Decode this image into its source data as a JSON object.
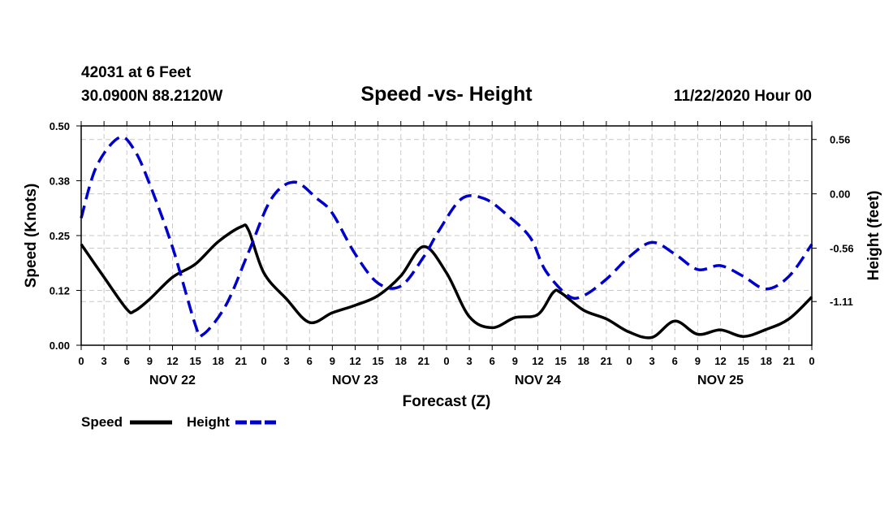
{
  "header": {
    "station": "42031 at 6 Feet",
    "coords": "30.0900N 88.2120W",
    "title": "Speed -vs- Height",
    "timestamp": "11/22/2020 Hour 00"
  },
  "legend": {
    "speed_label": "Speed",
    "height_label": "Height"
  },
  "colors": {
    "speed": "#000000",
    "height": "#0000cc",
    "grid": "#c8c8c8"
  },
  "chart_data": {
    "type": "line",
    "title": "Speed -vs- Height",
    "xlabel": "Forecast (Z)",
    "ylabel_left": "Speed (Knots)",
    "ylabel_right": "Height (feet)",
    "xlim": [
      0,
      96
    ],
    "x_tick_step": 3,
    "x_tick_labels": [
      "0",
      "3",
      "6",
      "9",
      "12",
      "15",
      "18",
      "21",
      "0",
      "3",
      "6",
      "9",
      "12",
      "15",
      "18",
      "21",
      "0",
      "3",
      "6",
      "9",
      "12",
      "15",
      "18",
      "21",
      "0",
      "3",
      "6",
      "9",
      "12",
      "15",
      "18",
      "21",
      "0"
    ],
    "day_labels": [
      {
        "label": "NOV 22",
        "x": 12
      },
      {
        "label": "NOV 23",
        "x": 36
      },
      {
        "label": "NOV 24",
        "x": 60
      },
      {
        "label": "NOV 25",
        "x": 84
      }
    ],
    "ylim_left": [
      0,
      0.5
    ],
    "y_ticks_left": [
      0.0,
      0.125,
      0.25,
      0.375,
      0.5
    ],
    "y_tick_labels_left": [
      "0.00",
      "0.12",
      "0.25",
      "0.38",
      "0.50"
    ],
    "ylim_right": [
      -1.56,
      0.7
    ],
    "y_ticks_right": [
      0.56,
      0.0,
      -0.56,
      -1.11
    ],
    "y_tick_labels_right": [
      "0.56",
      "0.00",
      "-0.56",
      "-1.11"
    ],
    "series": [
      {
        "name": "Speed",
        "axis": "left",
        "style": "solid",
        "x": [
          0,
          3,
          6,
          7,
          9,
          12,
          15,
          18,
          21,
          22,
          24,
          27,
          30,
          33,
          36,
          39,
          42,
          45,
          48,
          51,
          54,
          57,
          60,
          62,
          63,
          66,
          69,
          72,
          75,
          78,
          81,
          84,
          87,
          90,
          93,
          96
        ],
        "values": [
          0.23,
          0.155,
          0.082,
          0.078,
          0.105,
          0.155,
          0.185,
          0.236,
          0.27,
          0.262,
          0.165,
          0.105,
          0.052,
          0.074,
          0.091,
          0.113,
          0.158,
          0.225,
          0.165,
          0.065,
          0.04,
          0.063,
          0.07,
          0.12,
          0.12,
          0.08,
          0.06,
          0.03,
          0.018,
          0.055,
          0.025,
          0.035,
          0.02,
          0.036,
          0.06,
          0.11
        ]
      },
      {
        "name": "Height",
        "axis": "right",
        "style": "dashed",
        "x": [
          0,
          2,
          5,
          7,
          9,
          12,
          15,
          16,
          19,
          22,
          25,
          28,
          31,
          33,
          36,
          39,
          42,
          45,
          47,
          50,
          53,
          56,
          59,
          61,
          64,
          66,
          69,
          72,
          75,
          78,
          81,
          84,
          87,
          90,
          93,
          96
        ],
        "values": [
          -0.25,
          0.28,
          0.58,
          0.45,
          0.1,
          -0.55,
          -1.35,
          -1.45,
          -1.15,
          -0.6,
          -0.05,
          0.12,
          -0.05,
          -0.2,
          -0.62,
          -0.92,
          -0.95,
          -0.65,
          -0.38,
          -0.05,
          -0.05,
          -0.22,
          -0.45,
          -0.79,
          -1.05,
          -1.05,
          -0.88,
          -0.65,
          -0.5,
          -0.62,
          -0.78,
          -0.74,
          -0.85,
          -0.98,
          -0.85,
          -0.52
        ]
      }
    ]
  }
}
